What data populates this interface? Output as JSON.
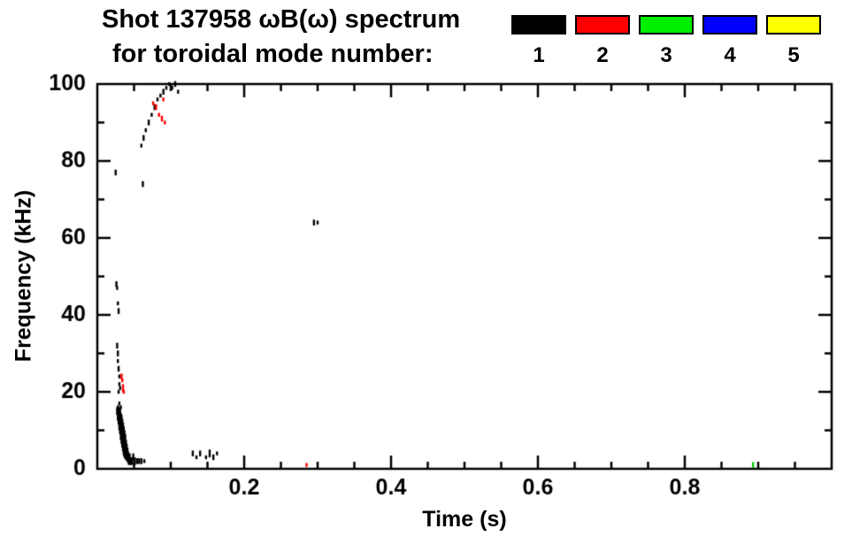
{
  "chart_data": {
    "type": "scatter",
    "title": "Shot 137958 ωB(ω) spectrum",
    "subtitle": "for toroidal mode number:",
    "xlabel": "Time (s)",
    "ylabel": "Frequency (kHz)",
    "xlim": [
      0,
      1.0
    ],
    "ylim": [
      0,
      100
    ],
    "xtick_values": [
      0.2,
      0.4,
      0.6,
      0.8
    ],
    "xtick_labels": [
      "0.2",
      "0.4",
      "0.6",
      "0.8"
    ],
    "x_minor_step": 0.05,
    "ytick_values": [
      0,
      20,
      40,
      60,
      80,
      100
    ],
    "ytick_labels": [
      "0",
      "20",
      "40",
      "60",
      "80",
      "100"
    ],
    "y_minor_step": 10,
    "grid": false,
    "legend_position": "top-right",
    "legend": [
      {
        "label": "1",
        "color": "#000000"
      },
      {
        "label": "2",
        "color": "#ff0000"
      },
      {
        "label": "3",
        "color": "#00ee00"
      },
      {
        "label": "4",
        "color": "#0000ff"
      },
      {
        "label": "5",
        "color": "#ffff00"
      }
    ],
    "series": [
      {
        "name": "n=1",
        "color": "#000000",
        "points": [
          [
            0.025,
            77,
            1.5
          ],
          [
            0.026,
            48,
            1.5
          ],
          [
            0.027,
            47,
            1
          ],
          [
            0.028,
            43,
            1
          ],
          [
            0.029,
            41,
            1.5
          ],
          [
            0.027,
            32,
            1.5
          ],
          [
            0.028,
            30,
            1.5
          ],
          [
            0.028,
            28,
            1
          ],
          [
            0.029,
            26,
            1.5
          ],
          [
            0.03,
            24,
            1
          ],
          [
            0.03,
            22,
            1
          ],
          [
            0.031,
            21,
            1
          ],
          [
            0.029,
            20,
            1
          ],
          [
            0.028,
            16,
            1
          ],
          [
            0.03,
            17,
            1
          ],
          [
            0.032,
            16,
            1
          ],
          [
            0.027,
            15,
            2
          ],
          [
            0.028,
            14,
            3
          ],
          [
            0.029,
            13,
            3
          ],
          [
            0.029,
            15,
            2
          ],
          [
            0.03,
            12,
            4
          ],
          [
            0.03,
            15,
            2
          ],
          [
            0.031,
            11,
            4
          ],
          [
            0.031,
            14,
            3
          ],
          [
            0.032,
            10,
            5
          ],
          [
            0.032,
            13,
            3
          ],
          [
            0.033,
            9,
            5
          ],
          [
            0.033,
            12,
            4
          ],
          [
            0.034,
            8,
            5
          ],
          [
            0.034,
            11,
            4
          ],
          [
            0.035,
            7,
            5
          ],
          [
            0.035,
            10,
            4
          ],
          [
            0.036,
            6,
            5
          ],
          [
            0.036,
            9,
            4
          ],
          [
            0.037,
            5,
            4
          ],
          [
            0.037,
            8,
            4
          ],
          [
            0.038,
            4,
            3
          ],
          [
            0.038,
            7,
            4
          ],
          [
            0.039,
            6,
            3
          ],
          [
            0.04,
            5,
            3
          ],
          [
            0.04,
            3,
            2
          ],
          [
            0.041,
            4,
            3
          ],
          [
            0.042,
            3,
            3
          ],
          [
            0.043,
            2,
            2
          ],
          [
            0.044,
            3,
            2
          ],
          [
            0.045,
            2,
            2
          ],
          [
            0.047,
            2,
            2
          ],
          [
            0.049,
            3,
            2
          ],
          [
            0.051,
            2,
            2
          ],
          [
            0.054,
            2,
            1.5
          ],
          [
            0.057,
            2,
            1.5
          ],
          [
            0.06,
            2,
            1.5
          ],
          [
            0.064,
            2,
            1
          ],
          [
            0.062,
            74,
            1.5
          ],
          [
            0.06,
            84,
            1
          ],
          [
            0.063,
            86,
            1.5
          ],
          [
            0.066,
            88,
            1
          ],
          [
            0.07,
            90,
            1.5
          ],
          [
            0.074,
            92,
            1
          ],
          [
            0.078,
            94,
            1.5
          ],
          [
            0.082,
            96,
            1
          ],
          [
            0.086,
            97,
            1
          ],
          [
            0.09,
            98,
            1.5
          ],
          [
            0.094,
            99,
            1
          ],
          [
            0.098,
            100,
            1
          ],
          [
            0.102,
            99,
            1
          ],
          [
            0.106,
            100,
            1.5
          ],
          [
            0.11,
            98,
            1
          ],
          [
            0.13,
            4,
            1.5
          ],
          [
            0.135,
            3,
            1
          ],
          [
            0.14,
            4,
            1.5
          ],
          [
            0.148,
            3,
            1
          ],
          [
            0.153,
            4,
            2
          ],
          [
            0.158,
            3,
            1.5
          ],
          [
            0.163,
            4,
            1
          ],
          [
            0.295,
            64,
            1.5
          ],
          [
            0.3,
            64,
            1
          ]
        ]
      },
      {
        "name": "n=2",
        "color": "#ff0000",
        "points": [
          [
            0.033,
            24,
            1.5
          ],
          [
            0.034,
            23,
            1
          ],
          [
            0.035,
            21,
            2
          ],
          [
            0.036,
            20,
            1
          ],
          [
            0.076,
            95,
            1
          ],
          [
            0.08,
            94,
            1.5
          ],
          [
            0.084,
            92,
            1
          ],
          [
            0.088,
            91,
            1.5
          ],
          [
            0.09,
            96,
            1
          ],
          [
            0.092,
            90,
            1
          ],
          [
            0.285,
            1,
            1
          ]
        ]
      },
      {
        "name": "n=3",
        "color": "#00cc00",
        "points": [
          [
            0.893,
            1,
            1.5
          ]
        ]
      },
      {
        "name": "n=4",
        "color": "#0000ff",
        "points": []
      },
      {
        "name": "n=5",
        "color": "#ffff00",
        "points": []
      }
    ]
  }
}
